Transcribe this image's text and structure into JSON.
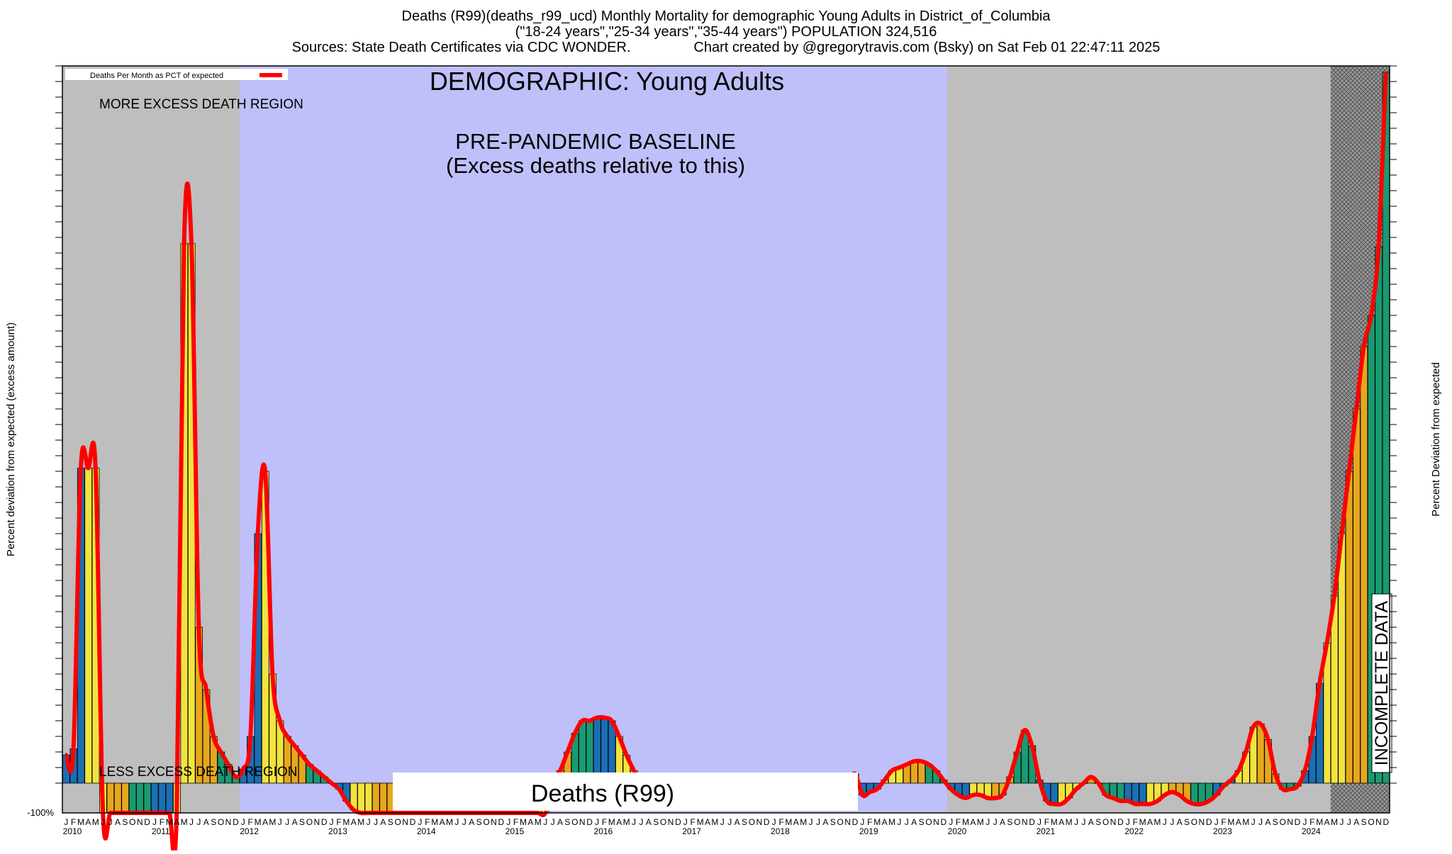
{
  "header": {
    "line1": "Deaths (R99)(deaths_r99_ucd) Monthly Mortality for demographic Young Adults in District_of_Columbia",
    "line2": "(\"18-24 years\",\"25-34 years\",\"35-44 years\") POPULATION 324,516",
    "line3_left": "Sources: State Death Certificates via CDC WONDER.",
    "line3_right": "Chart created by @gregorytravis.com (Bsky) on Sat Feb 01 22:47:11 2025"
  },
  "labels": {
    "legend": "Deaths Per Month as PCT of expected",
    "demographic": "DEMOGRAPHIC: Young Adults",
    "more_excess": "MORE EXCESS DEATH REGION",
    "less_excess": "LESS EXCESS DEATH REGION",
    "baseline_line1": "PRE-PANDEMIC BASELINE",
    "baseline_line2": "(Excess deaths relative to this)",
    "series_box": "Deaths (R99)",
    "incomplete": "INCOMPLETE DATA",
    "ylabel_left": "Percent deviation from expected (excess amount)",
    "ylabel_right": "Percent Deviation from expected",
    "y_bottom_tick": "-100%"
  },
  "colors": {
    "grey_region": "#bebebe",
    "baseline_region": "#bfbffa",
    "line": "#ff0000",
    "bar_palette": [
      "#1a6fb4",
      "#f2e33e",
      "#e6a71e",
      "#1a9a72"
    ]
  },
  "chart_data": {
    "type": "bar",
    "title": "Deaths (R99)(deaths_r99_ucd) Monthly Mortality for demographic Young Adults in District_of_Columbia",
    "xlabel": "",
    "ylabel": "Percent deviation from expected (excess amount)",
    "start": "2010-01",
    "years": [
      "2010",
      "2011",
      "2012",
      "2013",
      "2014",
      "2015",
      "2016",
      "2017",
      "2018",
      "2019",
      "2020",
      "2021",
      "2022",
      "2023",
      "2024"
    ],
    "month_letters": [
      "J",
      "F",
      "M",
      "A",
      "M",
      "J",
      "J",
      "A",
      "S",
      "O",
      "N",
      "D"
    ],
    "baseline_period": [
      "2012-01",
      "2019-12"
    ],
    "incomplete_period": [
      "2024-05",
      "2024-12"
    ],
    "ylim_note": "y values are percent deviation from expected; bottom of axis is -100%",
    "series": [
      {
        "name": "Deaths Per Month as PCT of expected",
        "values": [
          90,
          110,
          1010,
          1010,
          1010,
          -100,
          -100,
          -100,
          -100,
          -100,
          -100,
          -100,
          -100,
          -100,
          -100,
          -100,
          1730,
          1730,
          500,
          300,
          150,
          100,
          60,
          20,
          45,
          150,
          800,
          1000,
          350,
          200,
          150,
          120,
          90,
          60,
          40,
          20,
          0,
          -20,
          -60,
          -90,
          -100,
          -100,
          -100,
          -100,
          -100,
          -100,
          -100,
          -100,
          -100,
          -100,
          -100,
          -100,
          -100,
          -100,
          -100,
          -100,
          -100,
          -100,
          -100,
          -100,
          -100,
          -100,
          -100,
          -100,
          -100,
          -100,
          5,
          40,
          100,
          160,
          200,
          200,
          210,
          210,
          200,
          150,
          90,
          40,
          -10,
          -40,
          -50,
          -40,
          -30,
          -20,
          -25,
          -20,
          -15,
          -10,
          -5,
          5,
          10,
          0,
          -10,
          -20,
          -30,
          -40,
          -40,
          -30,
          -20,
          -10,
          0,
          10,
          -5,
          -20,
          -40,
          -20,
          0,
          30,
          -40,
          -30,
          -20,
          10,
          40,
          50,
          60,
          70,
          70,
          60,
          40,
          10,
          -20,
          -40,
          -50,
          -40,
          -40,
          -50,
          -50,
          -40,
          20,
          100,
          170,
          120,
          10,
          -60,
          -70,
          -70,
          -50,
          -20,
          0,
          20,
          0,
          -40,
          -50,
          -60,
          -60,
          -70,
          -70,
          -70,
          -60,
          -40,
          -30,
          -40,
          -60,
          -70,
          -70,
          -60,
          -40,
          -10,
          10,
          40,
          100,
          180,
          190,
          140,
          30,
          -20,
          -20,
          -10,
          40,
          150,
          320,
          450,
          600,
          800,
          1000,
          1200,
          1400,
          1500,
          1720,
          2280
        ]
      }
    ]
  }
}
